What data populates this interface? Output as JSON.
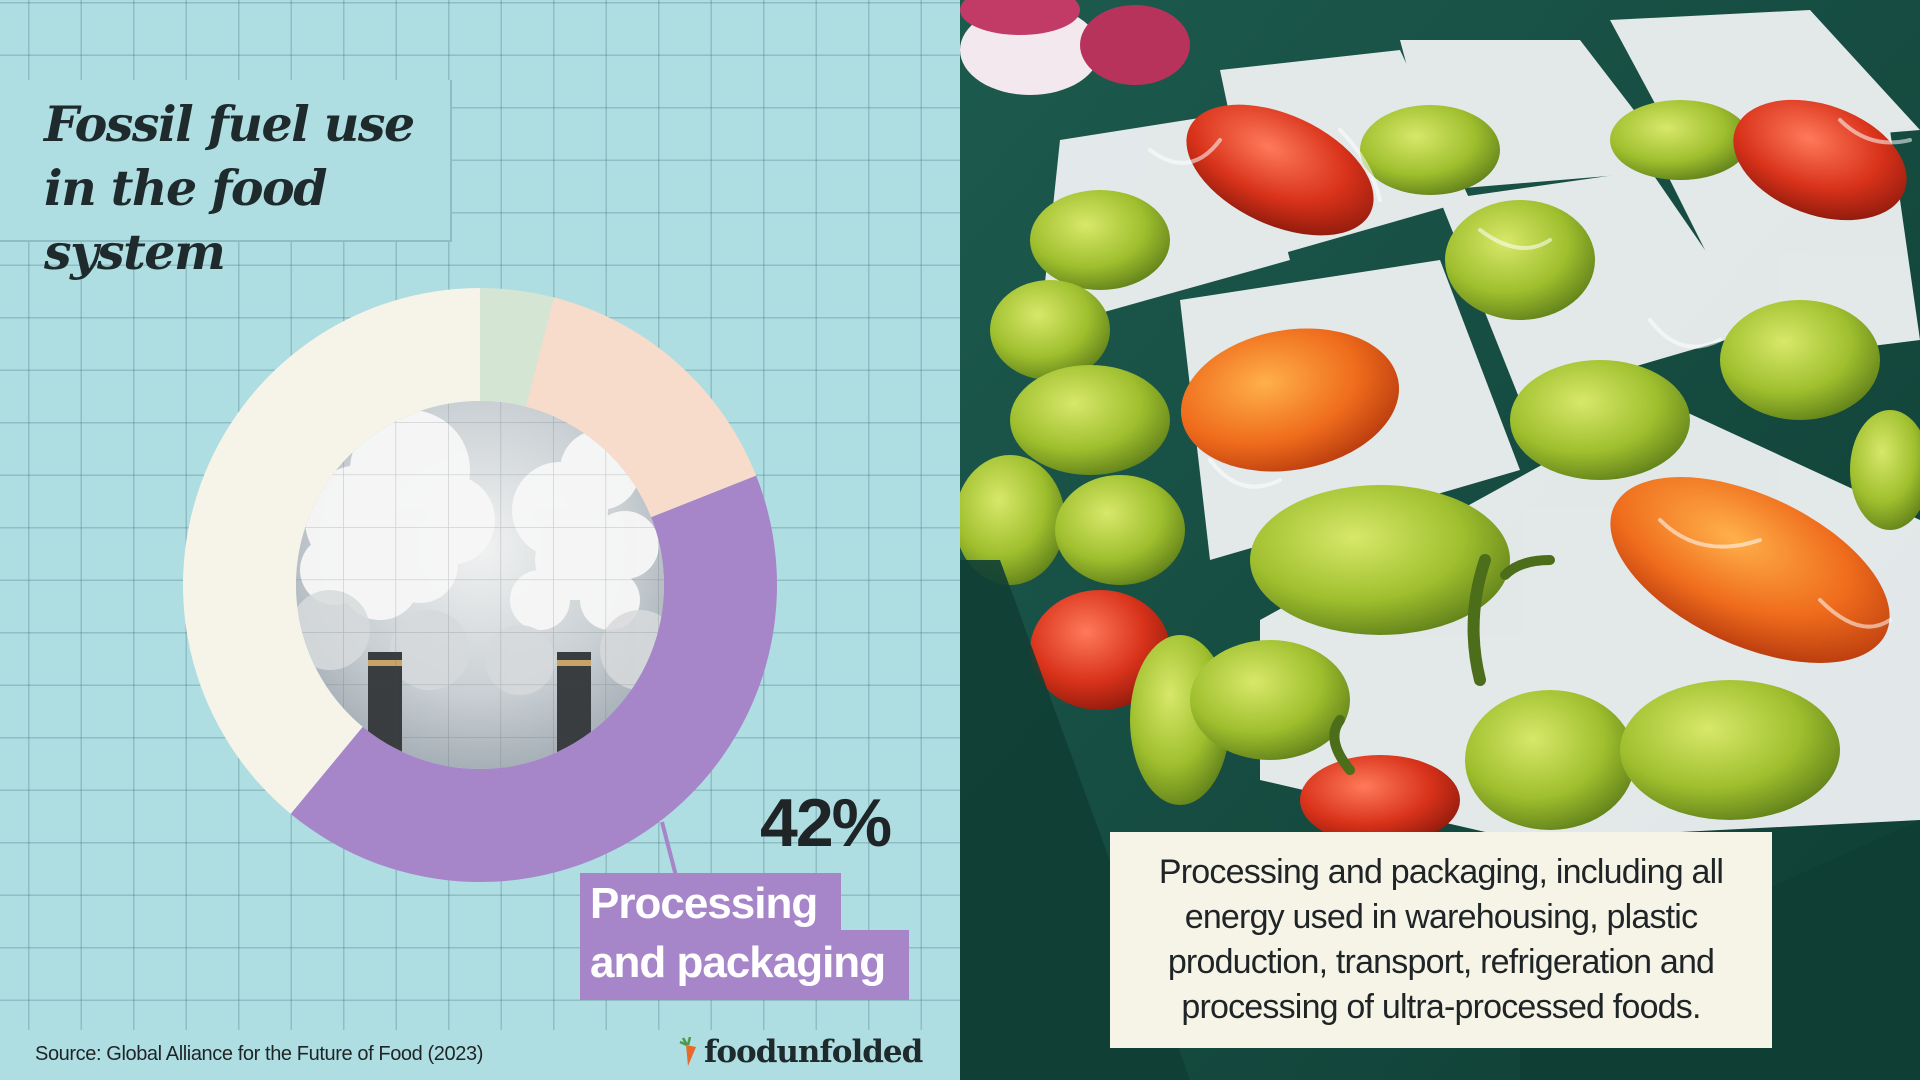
{
  "title": "Fossil fuel use in the food system",
  "highlight": {
    "value_label": "42%",
    "label_line1": "Processing",
    "label_line2": "and packaging"
  },
  "source": "Source: Global Alliance for the Future of Food (2023)",
  "logo_text": "foodunfolded",
  "caption": "Processing and packaging, including all energy used in warehousing, plastic production, transport, refrigeration and processing of ultra-processed foods.",
  "colors": {
    "background": "#aedde2",
    "processing_packaging": "#a686c9",
    "segment_peach": "#f8dccb",
    "segment_sage": "#d4e5d4",
    "segment_cream": "#f6f4e8"
  },
  "chart_data": {
    "type": "pie",
    "style": "donut",
    "slices": [
      {
        "label": "",
        "value": 4,
        "color": "#d4e5d4"
      },
      {
        "label": "",
        "value": 15,
        "color": "#f8dccb"
      },
      {
        "label": "Processing and packaging",
        "value": 42,
        "color": "#a686c9"
      },
      {
        "label": "",
        "value": 39,
        "color": "#f6f4e8"
      }
    ],
    "center_image": "smokestacks"
  }
}
